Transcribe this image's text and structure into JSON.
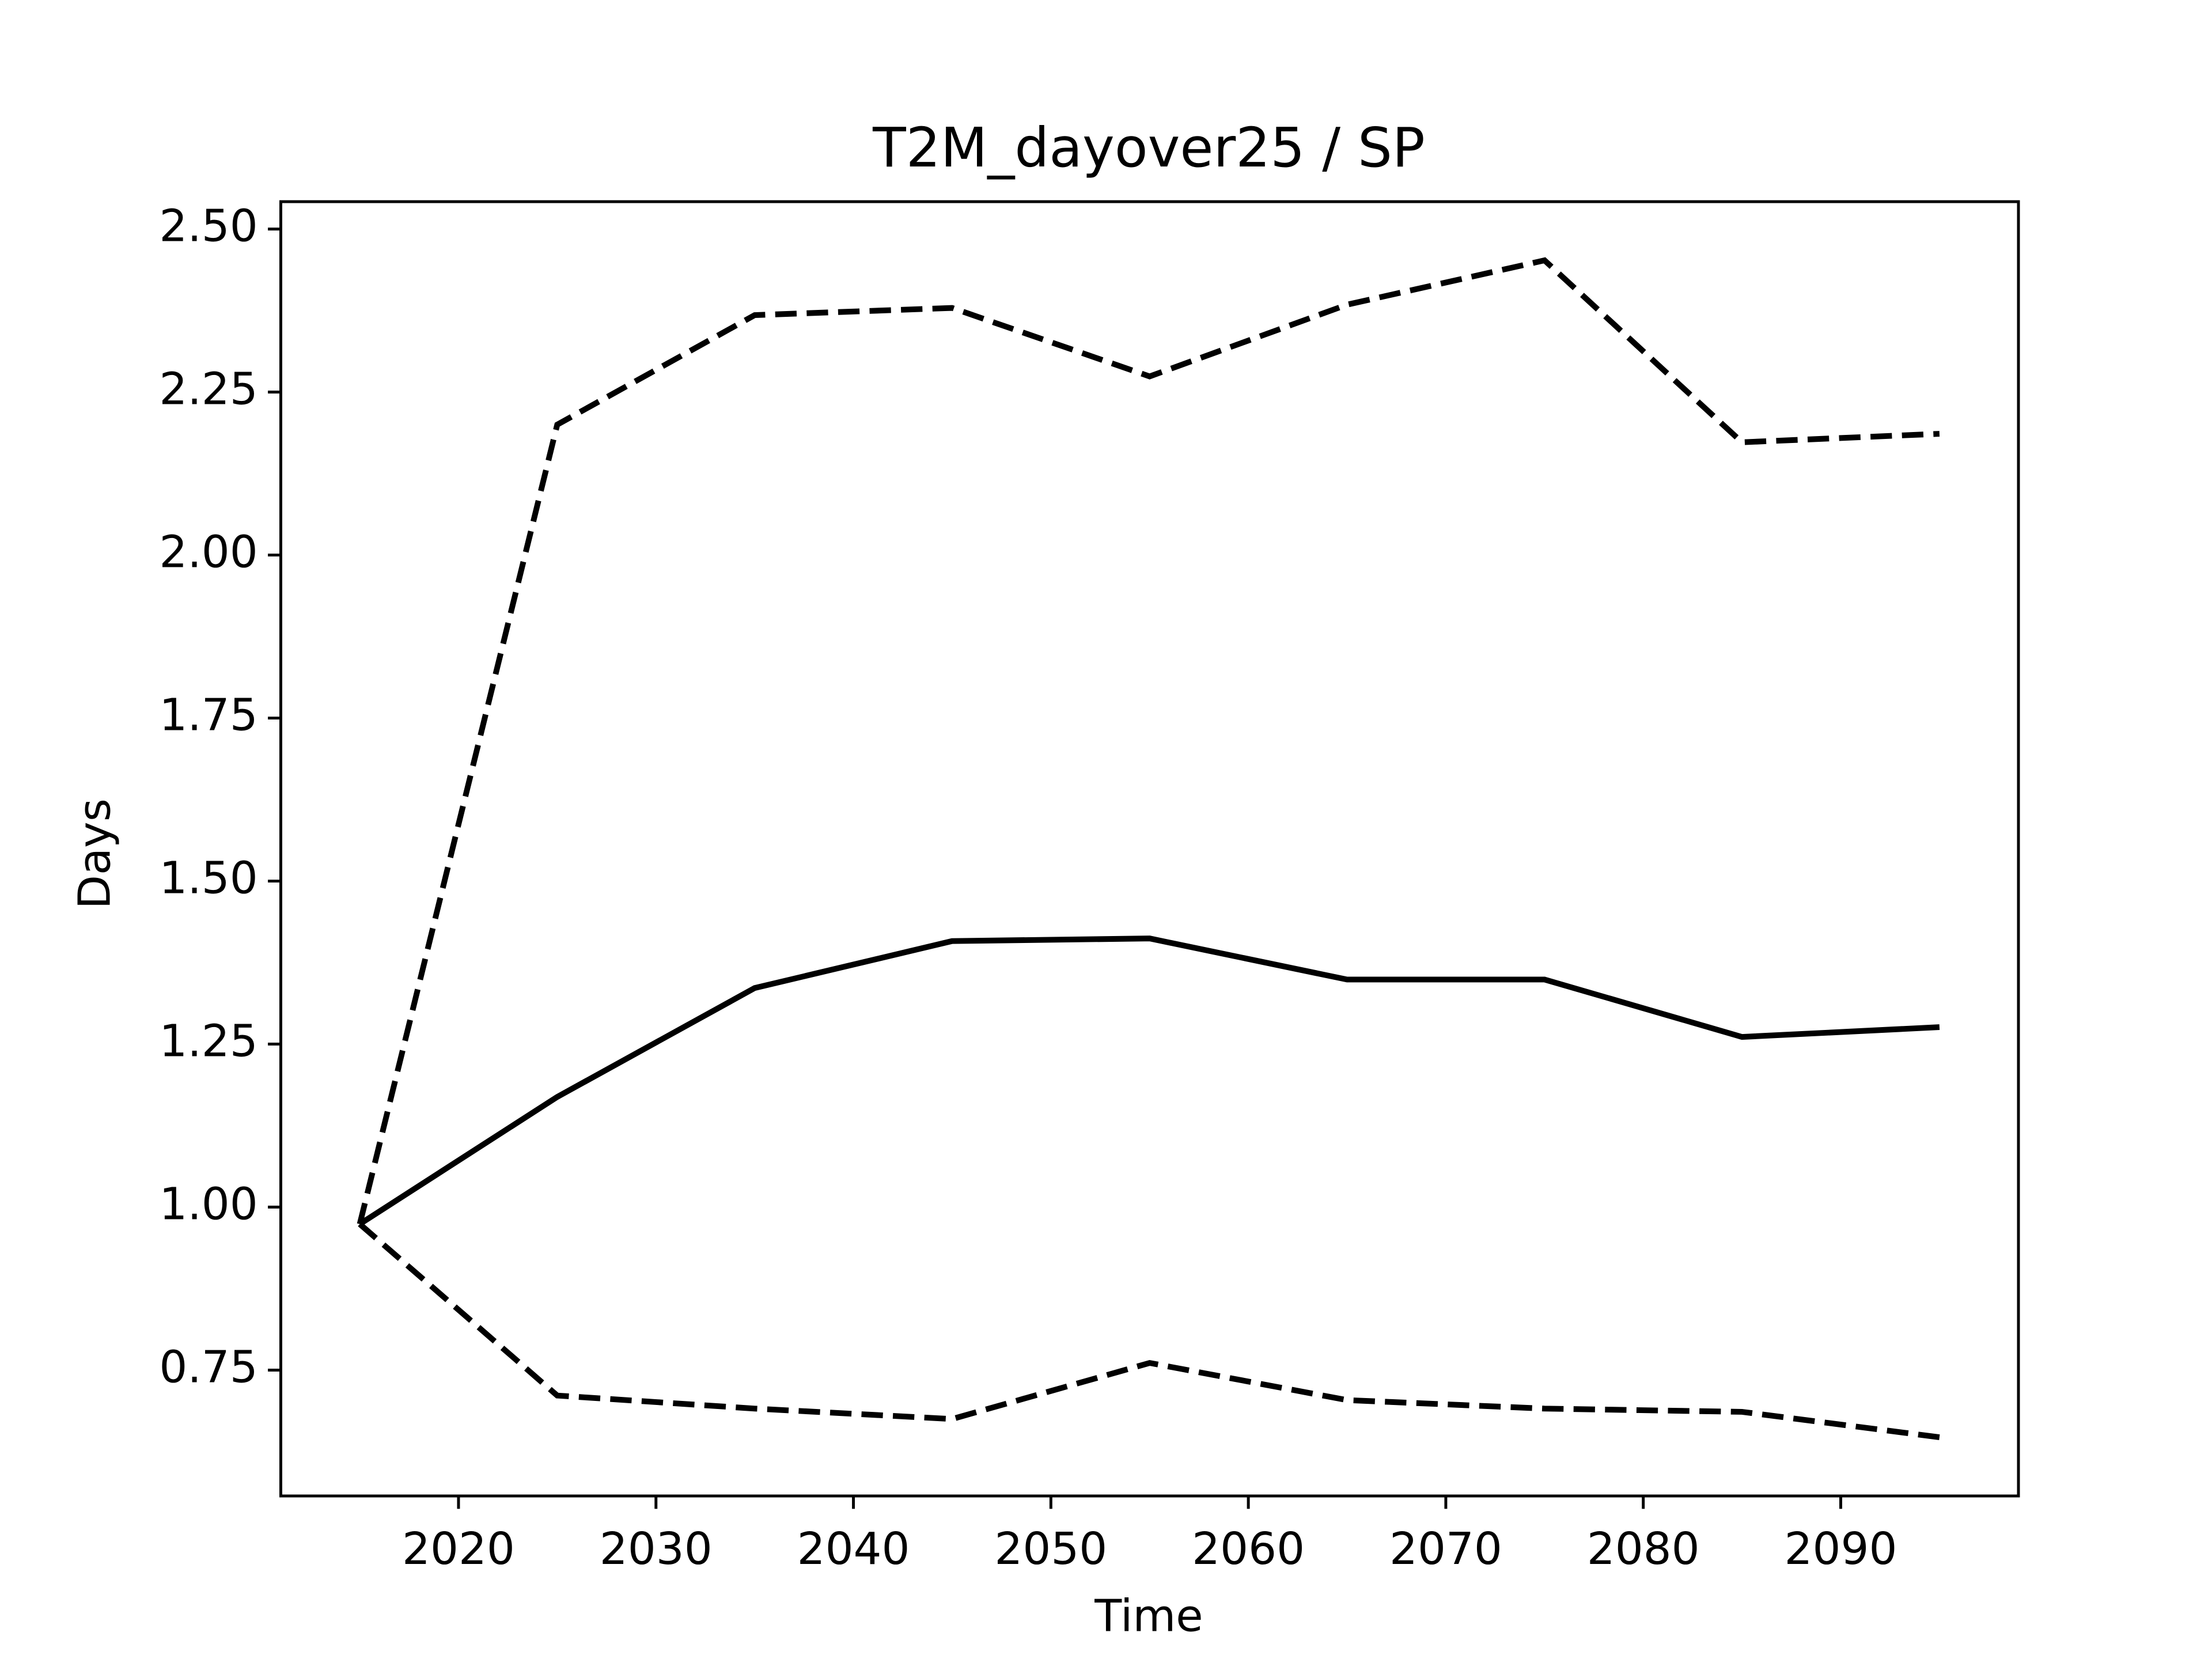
{
  "chart_data": {
    "type": "line",
    "title": "T2M_dayover25 / SP",
    "xlabel": "Time",
    "ylabel": "Days",
    "x": [
      2015,
      2025,
      2035,
      2045,
      2055,
      2065,
      2075,
      2085,
      2095
    ],
    "series": [
      {
        "color": "#000000",
        "linestyle": "dashed",
        "values": [
          0.974,
          2.2,
          2.368,
          2.379,
          2.274,
          2.384,
          2.452,
          2.173,
          2.186
        ]
      },
      {
        "color": "#000000",
        "linestyle": "solid",
        "values": [
          0.974,
          1.169,
          1.336,
          1.408,
          1.412,
          1.349,
          1.349,
          1.261,
          1.276
        ]
      },
      {
        "color": "#000000",
        "linestyle": "dashed",
        "values": [
          0.974,
          0.711,
          0.691,
          0.675,
          0.761,
          0.704,
          0.691,
          0.686,
          0.647
        ]
      }
    ],
    "xlim": [
      2011,
      2099
    ],
    "ylim": [
      0.557,
      2.542
    ],
    "xticks": [
      2020,
      2030,
      2040,
      2050,
      2060,
      2070,
      2080,
      2090
    ],
    "yticks": [
      {
        "value": 0.75,
        "label": "0.75"
      },
      {
        "value": 1.0,
        "label": "1.00"
      },
      {
        "value": 1.25,
        "label": "1.25"
      },
      {
        "value": 1.5,
        "label": "1.50"
      },
      {
        "value": 1.75,
        "label": "1.75"
      },
      {
        "value": 2.0,
        "label": "2.00"
      },
      {
        "value": 2.25,
        "label": "2.25"
      },
      {
        "value": 2.5,
        "label": "2.50"
      }
    ],
    "grid": false
  }
}
